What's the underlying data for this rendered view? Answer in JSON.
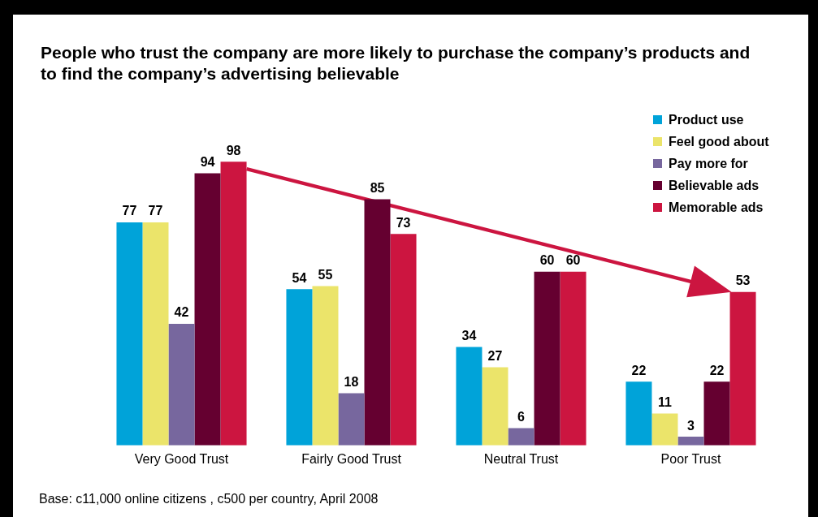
{
  "chart_data": {
    "type": "bar",
    "title": "People who trust the company are more likely to purchase the company’s products and to find the company’s advertising believable",
    "categories": [
      "Very Good Trust",
      "Fairly Good Trust",
      "Neutral Trust",
      "Poor Trust"
    ],
    "series": [
      {
        "name": "Product use",
        "color": "#00a3d9",
        "values": [
          77,
          54,
          34,
          22
        ]
      },
      {
        "name": "Feel good about",
        "color": "#ebe46a",
        "values": [
          77,
          55,
          27,
          11
        ]
      },
      {
        "name": "Pay more for",
        "color": "#77679e",
        "values": [
          42,
          18,
          6,
          3
        ]
      },
      {
        "name": "Believable ads",
        "color": "#650030",
        "values": [
          94,
          85,
          60,
          22
        ]
      },
      {
        "name": "Memorable ads",
        "color": "#cc1540",
        "values": [
          98,
          73,
          60,
          53
        ]
      }
    ],
    "data_labels": true,
    "grid": false,
    "legend": "top right",
    "tick_labels": "x",
    "annotations": [
      "Base:  c11,000 online citizens , c500 per country, April 2008"
    ]
  }
}
